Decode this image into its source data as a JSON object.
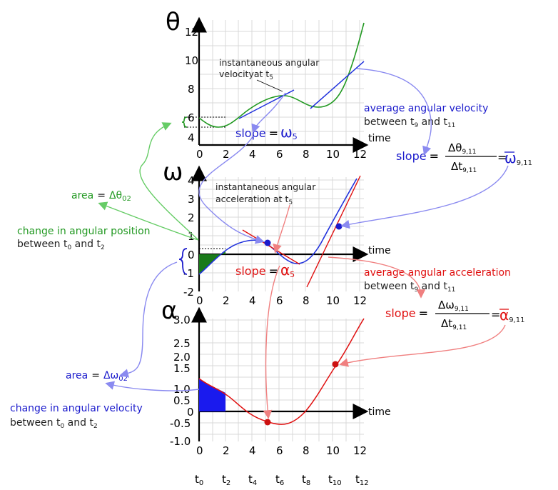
{
  "symbols": {
    "theta": "θ",
    "omega": "ω",
    "alpha": "α"
  },
  "x_axis": {
    "label": "time",
    "ticks": [
      "0",
      "2",
      "4",
      "6",
      "8",
      "10",
      "12"
    ]
  },
  "theta_plot": {
    "y_ticks": [
      "4",
      "6",
      "8",
      "10",
      "12"
    ],
    "annotation_inst": [
      "instantaneous angular",
      "velocityat t"
    ],
    "annotation_inst_sub": "5",
    "slope_label": "slope",
    "slope_eq": "=",
    "slope_sym": "ω",
    "slope_sub": "5",
    "avg_label": [
      "average angular velocity",
      "between t"
    ],
    "avg_sub_a": "9",
    "avg_mid": " and t",
    "avg_sub_b": "11",
    "avg_slope_label": "slope",
    "avg_eq": "=",
    "avg_num": "Δθ",
    "avg_num_sub": "9,11",
    "avg_den": "Δt",
    "avg_den_sub": "9,11",
    "avg_eq2": "=",
    "avg_result": "ω",
    "avg_result_sub": "9,11"
  },
  "omega_plot": {
    "y_ticks": [
      "-2",
      "-1",
      "0",
      "1",
      "2",
      "3",
      "4"
    ],
    "area_label": "area",
    "area_eq": "=",
    "area_val": "Δθ",
    "area_sub": "02",
    "change_label": "change in angular position",
    "between_a": "between t",
    "between_sub_a": "0",
    "between_mid": " and t",
    "between_sub_b": "2",
    "inst_accel": [
      "instantaneous angular",
      "acceleration at t"
    ],
    "inst_accel_sub": "5",
    "slope_label": "slope",
    "slope_eq": "=",
    "slope_sym": "α",
    "slope_sub": "5",
    "avg_label": [
      "average angular acceleration",
      "between t"
    ],
    "avg_sub_a": "9",
    "avg_mid": " and t",
    "avg_sub_b": "11",
    "avg_slope_label": "slope",
    "avg_eq": "=",
    "avg_num": "Δω",
    "avg_num_sub": "9,11",
    "avg_den": "Δt",
    "avg_den_sub": "9,11",
    "avg_eq2": "=",
    "avg_result": "α",
    "avg_result_sub": "9,11"
  },
  "alpha_plot": {
    "y_ticks": [
      "-1.0",
      "-0.5",
      "0",
      "0.5",
      "1.0",
      "1.5",
      "2.0",
      "2.5",
      "3.0"
    ],
    "area_label": "area",
    "area_eq": "=",
    "area_val": "Δω",
    "area_sub": "02",
    "change_label": "change in angular velocity",
    "between_a": "between t",
    "between_sub_a": "0",
    "between_mid": " and t",
    "between_sub_b": "2"
  },
  "bottom_ticks": [
    {
      "t": "t",
      "s": "0"
    },
    {
      "t": "t",
      "s": "2"
    },
    {
      "t": "t",
      "s": "4"
    },
    {
      "t": "t",
      "s": "6"
    },
    {
      "t": "t",
      "s": "8"
    },
    {
      "t": "t",
      "s": "10"
    },
    {
      "t": "t",
      "s": "12"
    }
  ],
  "colors": {
    "green": "#229922",
    "blue": "#1a1acc",
    "red": "#e01010",
    "light_blue": "#8a8af0",
    "light_red": "#f08080",
    "light_green": "#66cc66"
  }
}
